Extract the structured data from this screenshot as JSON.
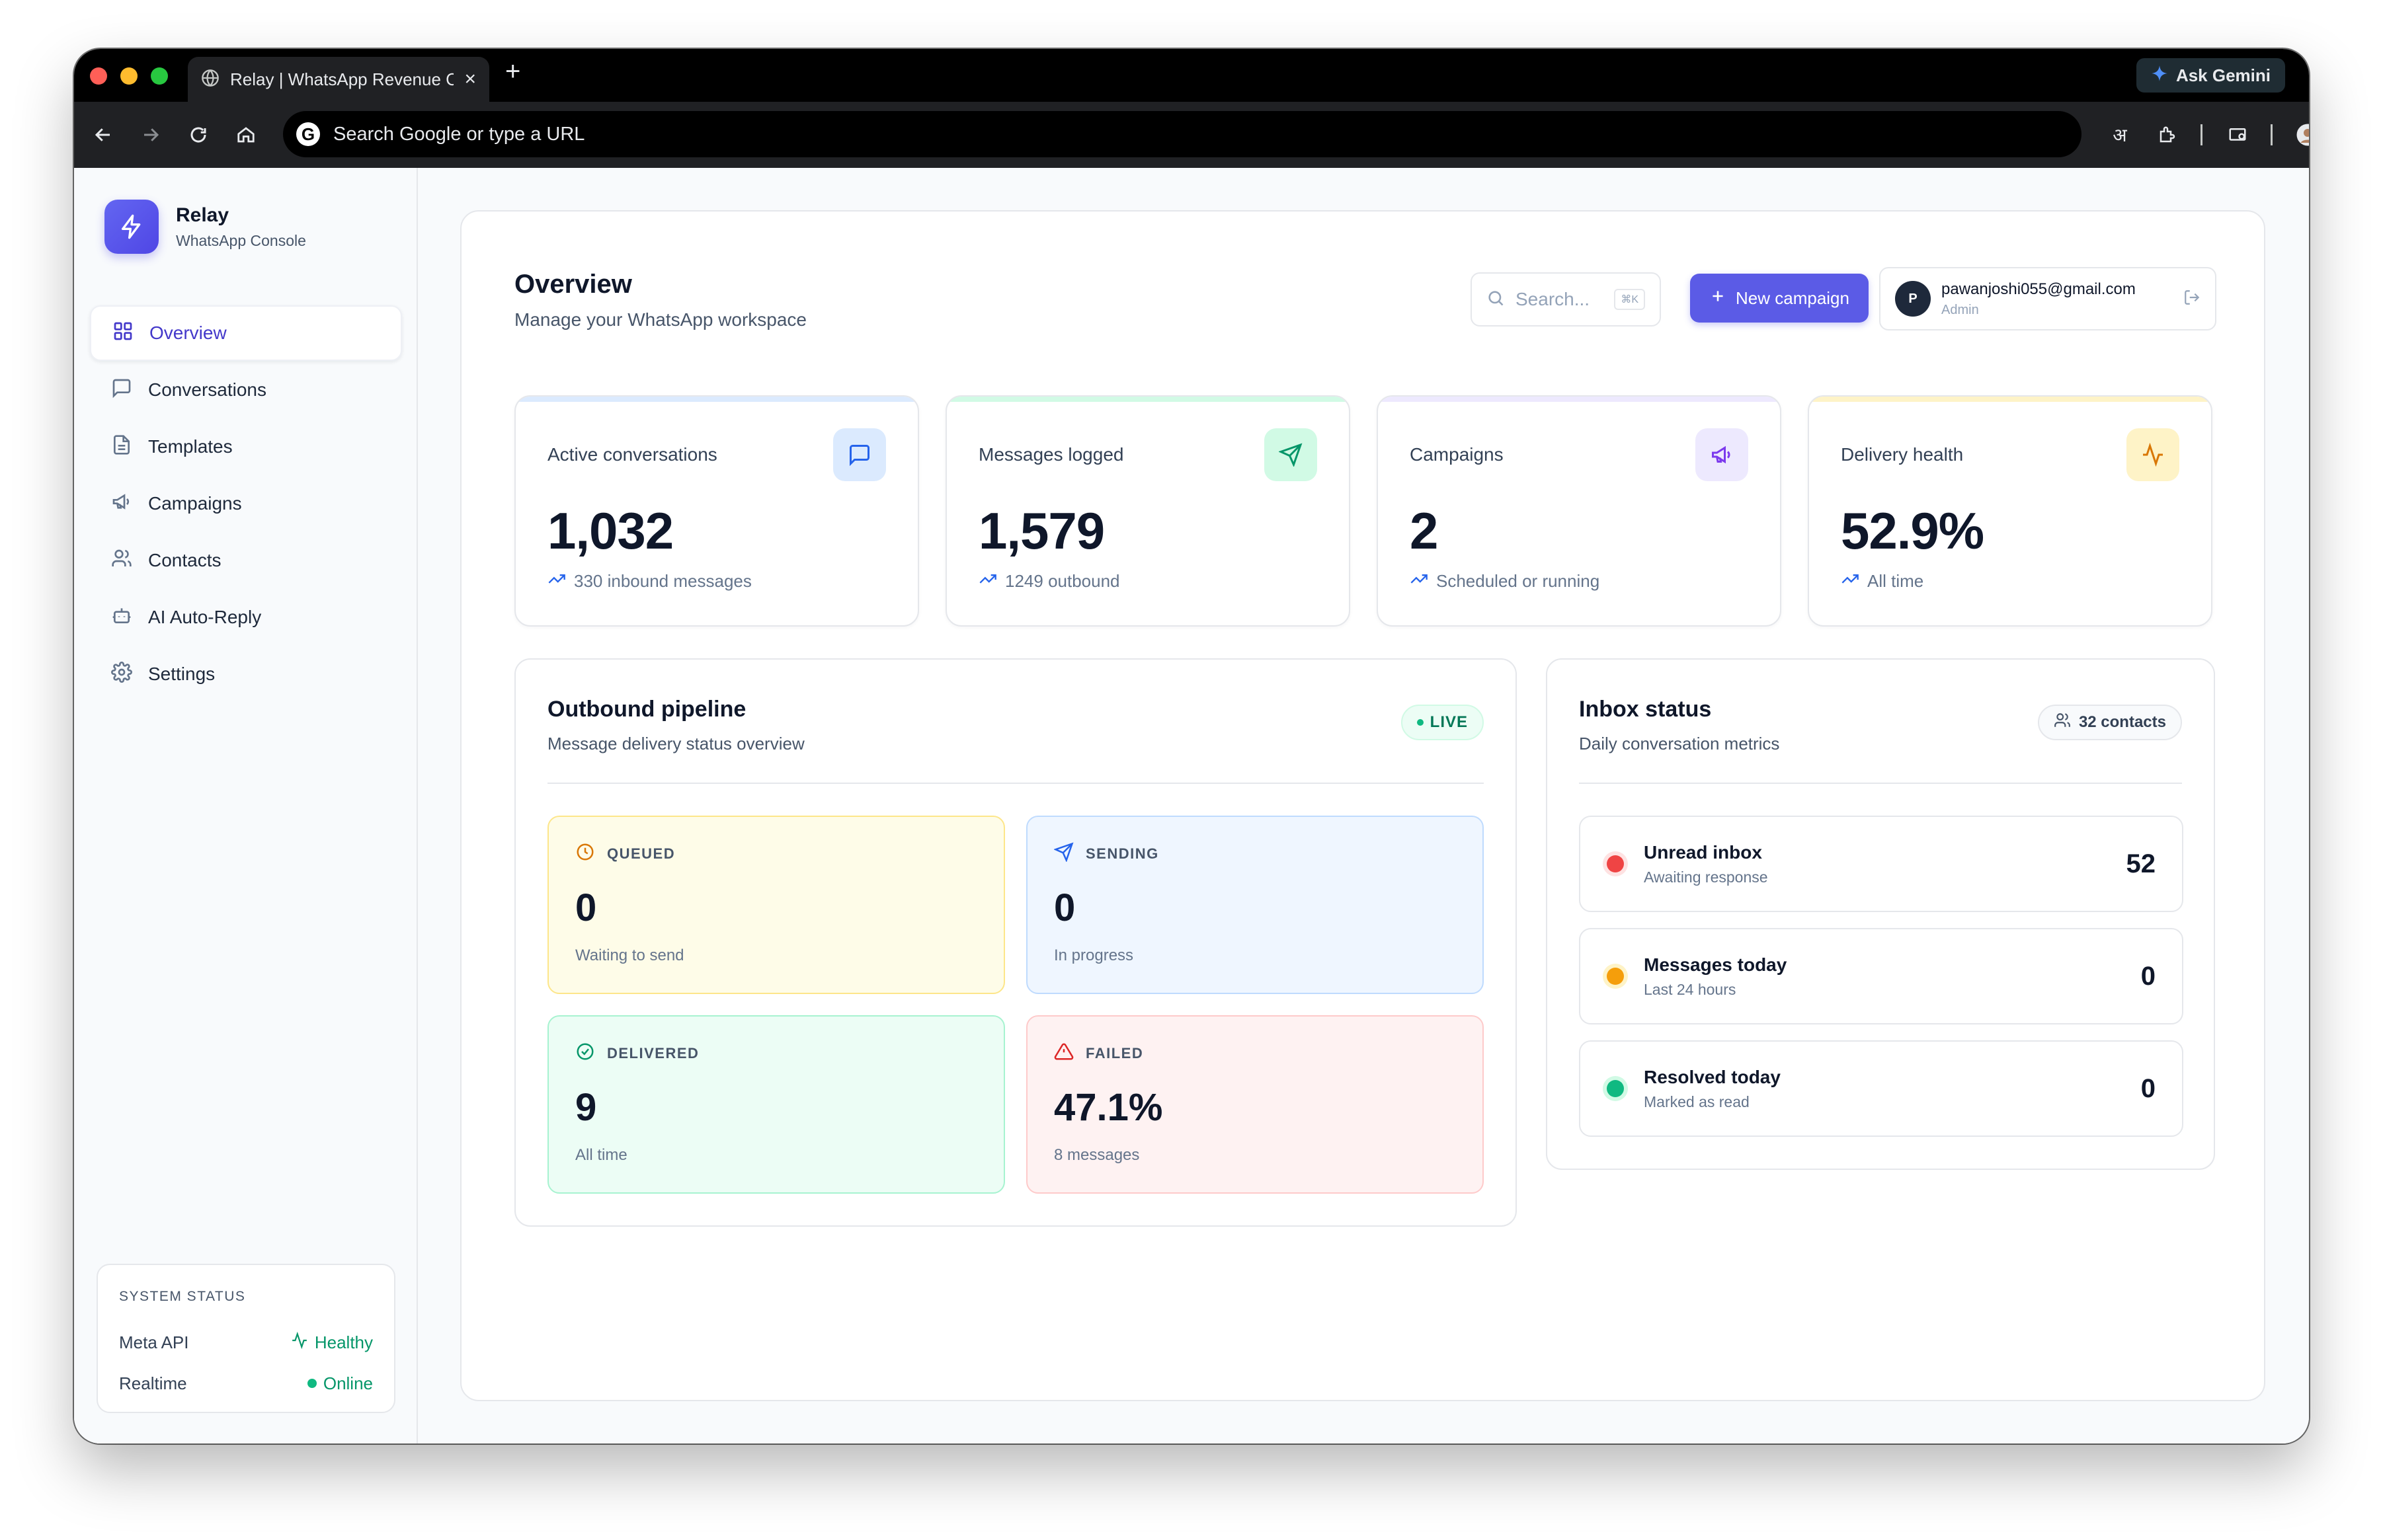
{
  "browser": {
    "tab_title": "Relay | WhatsApp Revenue Co",
    "omnibox_placeholder": "Search Google or type a URL",
    "ask_gemini": "Ask Gemini",
    "translate_glyph": "अ"
  },
  "brand": {
    "name": "Relay",
    "subtitle": "WhatsApp Console"
  },
  "nav": [
    {
      "label": "Overview",
      "icon": "grid-icon",
      "active": true
    },
    {
      "label": "Conversations",
      "icon": "message-square-icon"
    },
    {
      "label": "Templates",
      "icon": "file-text-icon"
    },
    {
      "label": "Campaigns",
      "icon": "megaphone-icon"
    },
    {
      "label": "Contacts",
      "icon": "users-icon"
    },
    {
      "label": "AI Auto-Reply",
      "icon": "bot-icon"
    },
    {
      "label": "Settings",
      "icon": "gear-icon"
    }
  ],
  "system_status": {
    "title": "SYSTEM STATUS",
    "rows": [
      {
        "key": "Meta API",
        "value": "Healthy"
      },
      {
        "key": "Realtime",
        "value": "Online"
      }
    ]
  },
  "header": {
    "title": "Overview",
    "subtitle": "Manage your WhatsApp workspace",
    "search_placeholder": "Search...",
    "search_shortcut": "⌘K",
    "new_campaign": "New campaign",
    "user": {
      "initial": "P",
      "email": "pawanjoshi055@gmail.com",
      "role": "Admin"
    }
  },
  "stats": [
    {
      "label": "Active conversations",
      "value": "1,032",
      "sub": "330 inbound messages",
      "icon": "message-square-icon",
      "accent": "#dbeafe",
      "icon_color": "#2563eb"
    },
    {
      "label": "Messages logged",
      "value": "1,579",
      "sub": "1249 outbound",
      "icon": "send-icon",
      "accent": "#d1fae5",
      "icon_color": "#059669"
    },
    {
      "label": "Campaigns",
      "value": "2",
      "sub": "Scheduled or running",
      "icon": "megaphone-icon",
      "accent": "#ede9fe",
      "icon_color": "#7c3aed"
    },
    {
      "label": "Delivery health",
      "value": "52.9%",
      "sub": "All time",
      "icon": "activity-icon",
      "accent": "#fef3c7",
      "icon_color": "#d97706"
    }
  ],
  "pipeline": {
    "title": "Outbound pipeline",
    "subtitle": "Message delivery status overview",
    "badge": "LIVE",
    "tiles": [
      {
        "label": "QUEUED",
        "value": "0",
        "sub": "Waiting to send",
        "icon": "clock-icon"
      },
      {
        "label": "SENDING",
        "value": "0",
        "sub": "In progress",
        "icon": "send-icon"
      },
      {
        "label": "DELIVERED",
        "value": "9",
        "sub": "All time",
        "icon": "check-circle-icon"
      },
      {
        "label": "FAILED",
        "value": "47.1%",
        "sub": "8 messages",
        "icon": "alert-triangle-icon"
      }
    ]
  },
  "inbox": {
    "title": "Inbox status",
    "subtitle": "Daily conversation metrics",
    "contacts_badge": "32 contacts",
    "rows": [
      {
        "title": "Unread inbox",
        "sub": "Awaiting response",
        "value": "52",
        "color": "#ef4444"
      },
      {
        "title": "Messages today",
        "sub": "Last 24 hours",
        "value": "0",
        "color": "#f59e0b"
      },
      {
        "title": "Resolved today",
        "sub": "Marked as read",
        "value": "0",
        "color": "#10b981"
      }
    ]
  }
}
